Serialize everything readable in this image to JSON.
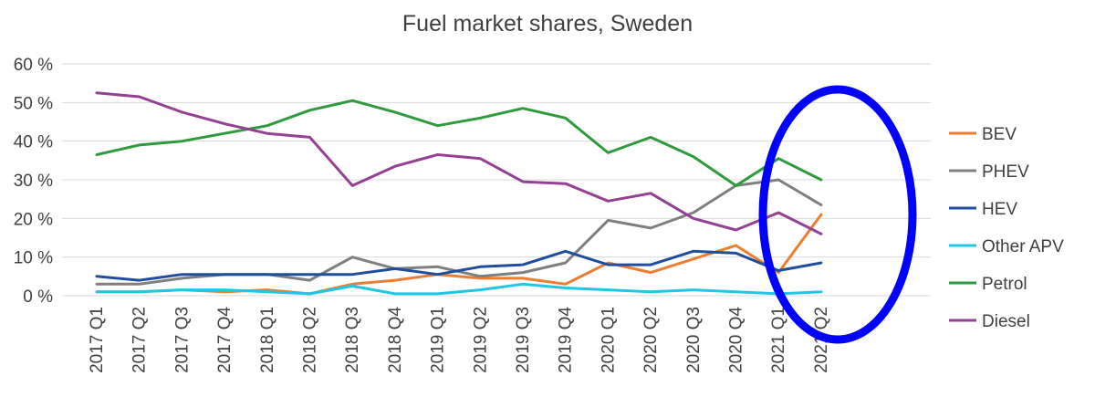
{
  "chart_data": {
    "type": "line",
    "title": "Fuel market shares, Sweden",
    "xlabel": "",
    "ylabel": "",
    "ylim": [
      0,
      60
    ],
    "yticks": [
      "0 %",
      "10 %",
      "20 %",
      "30 %",
      "40 %",
      "50 %",
      "60 %"
    ],
    "grid": true,
    "legend_position": "right",
    "categories": [
      "2017 Q1",
      "2017 Q2",
      "2017 Q3",
      "2017 Q4",
      "2018 Q1",
      "2018 Q2",
      "2018 Q3",
      "2018 Q4",
      "2019 Q1",
      "2019 Q2",
      "2019 Q3",
      "2019 Q4",
      "2020 Q1",
      "2020 Q2",
      "2020 Q3",
      "2020 Q4",
      "2021 Q1",
      "2021 Q2"
    ],
    "series": [
      {
        "name": "BEV",
        "color": "#ED7D31",
        "values": [
          1.0,
          1.0,
          1.5,
          1.0,
          1.5,
          0.5,
          3.0,
          4.0,
          5.5,
          4.5,
          4.5,
          3.0,
          8.5,
          6.0,
          9.5,
          13.0,
          6.0,
          21.0
        ]
      },
      {
        "name": "PHEV",
        "color": "#7F7F7F",
        "values": [
          3.0,
          3.0,
          4.5,
          5.5,
          5.5,
          4.0,
          10.0,
          7.0,
          7.5,
          5.0,
          6.0,
          8.5,
          19.5,
          17.5,
          21.5,
          28.5,
          30.0,
          23.5
        ]
      },
      {
        "name": "HEV",
        "color": "#1F4E9E",
        "values": [
          5.0,
          4.0,
          5.5,
          5.5,
          5.5,
          5.5,
          5.5,
          7.0,
          5.5,
          7.5,
          8.0,
          11.5,
          8.0,
          8.0,
          11.5,
          11.0,
          6.5,
          8.5
        ]
      },
      {
        "name": "Other APV",
        "color": "#1FC7E6",
        "values": [
          1.0,
          1.0,
          1.5,
          1.5,
          1.0,
          0.5,
          2.5,
          0.5,
          0.5,
          1.5,
          3.0,
          2.0,
          1.5,
          1.0,
          1.5,
          1.0,
          0.5,
          1.0
        ]
      },
      {
        "name": "Petrol",
        "color": "#2E9B3D",
        "values": [
          36.5,
          39.0,
          40.0,
          42.0,
          44.0,
          48.0,
          50.5,
          47.5,
          44.0,
          46.0,
          48.5,
          46.0,
          37.0,
          41.0,
          36.0,
          28.5,
          35.5,
          30.0
        ]
      },
      {
        "name": "Diesel",
        "color": "#944193",
        "values": [
          52.5,
          51.5,
          47.5,
          44.5,
          42.0,
          41.0,
          28.5,
          33.5,
          36.5,
          35.5,
          29.5,
          29.0,
          24.5,
          26.5,
          20.0,
          17.0,
          21.5,
          16.0
        ]
      }
    ],
    "annotations": [
      {
        "type": "ellipse",
        "color": "#0000FF",
        "covers": [
          "2020 Q4",
          "2021 Q1",
          "2021 Q2"
        ]
      }
    ]
  }
}
